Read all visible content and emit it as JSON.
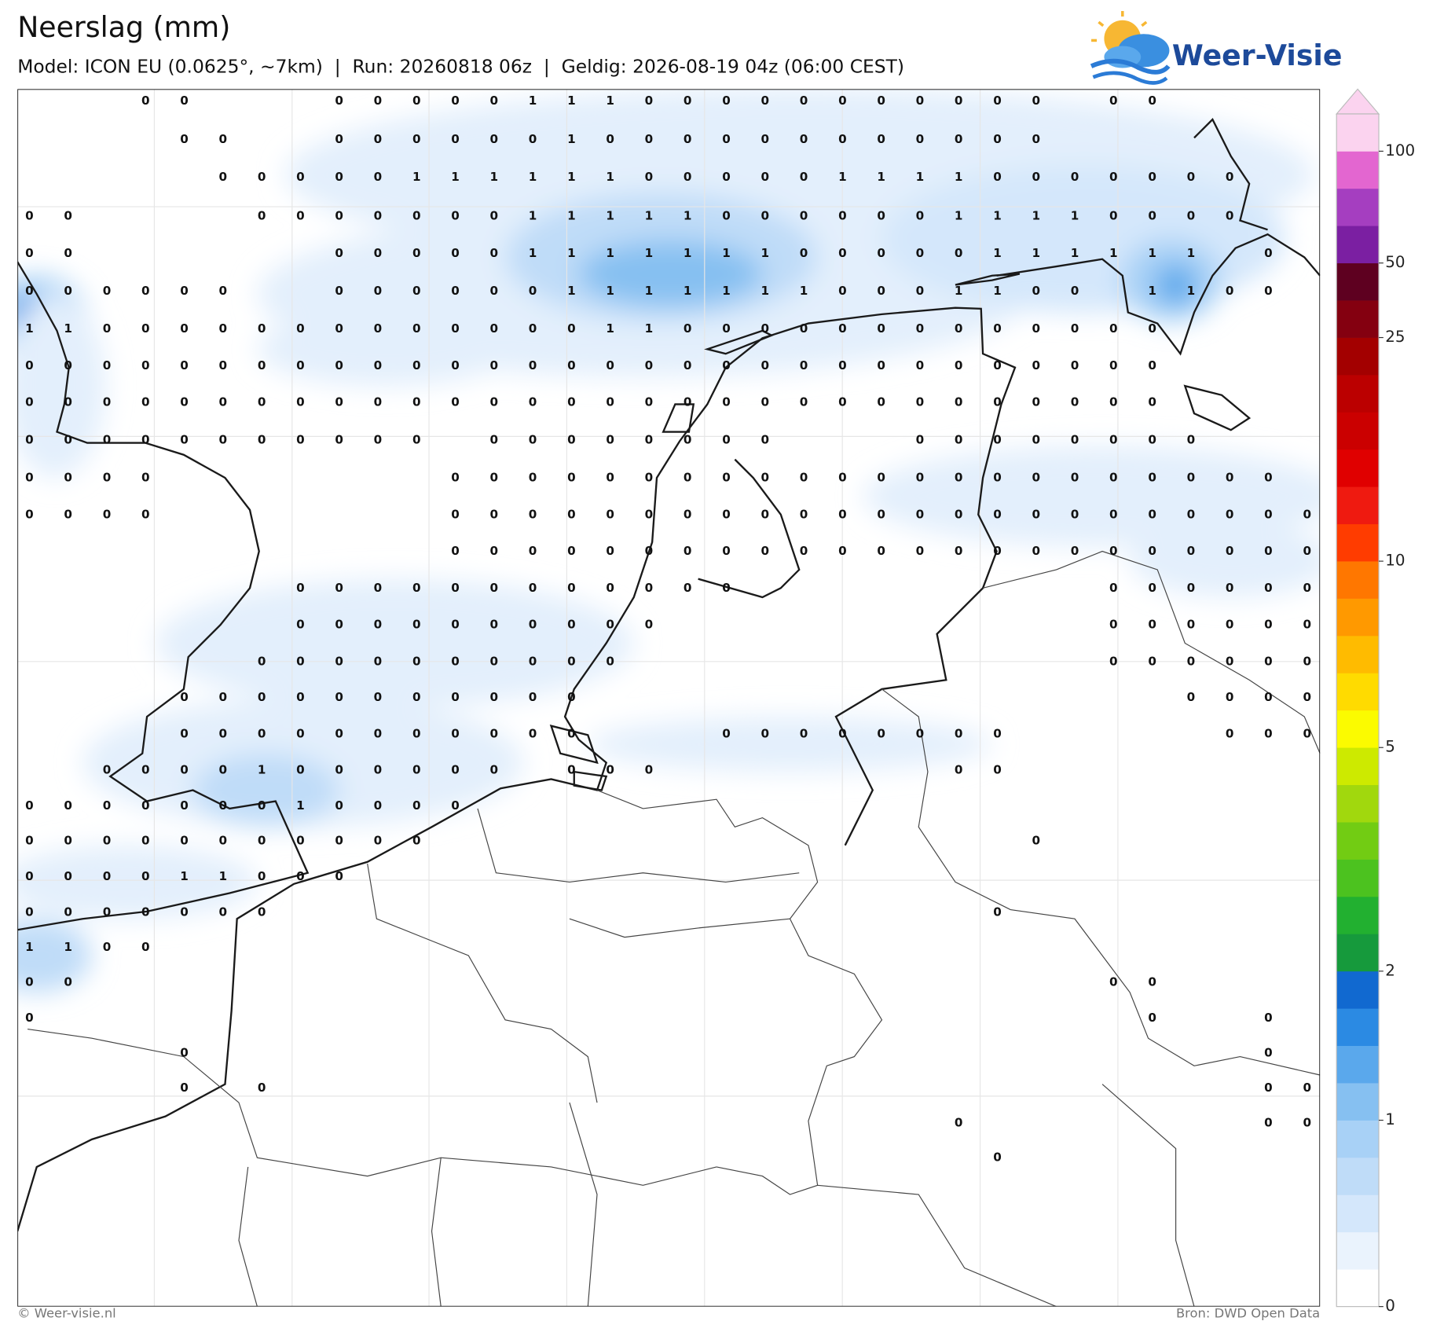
{
  "header": {
    "title": "Neerslag (mm)",
    "subtitle": "Model: ICON EU (0.0625°, ~7km)  |  Run: 20260818 06z  |  Geldig: 2026-08-19 04z (06:00 CEST)"
  },
  "logo": {
    "text": "Weer-Visie"
  },
  "map": {
    "grid": [
      [
        null,
        null,
        null,
        0,
        0,
        null,
        null,
        null,
        0,
        0,
        0,
        0,
        0,
        1,
        1,
        1,
        0,
        0,
        0,
        0,
        0,
        0,
        0,
        0,
        0,
        0,
        0,
        null,
        0,
        0,
        null,
        null,
        null,
        null
      ],
      [
        null,
        null,
        null,
        null,
        0,
        0,
        null,
        null,
        0,
        0,
        0,
        0,
        0,
        0,
        1,
        0,
        0,
        0,
        0,
        0,
        0,
        0,
        0,
        0,
        0,
        0,
        0,
        null,
        null,
        null,
        null,
        null,
        null,
        null
      ],
      [
        null,
        null,
        null,
        null,
        null,
        0,
        0,
        0,
        0,
        0,
        1,
        1,
        1,
        1,
        1,
        1,
        0,
        0,
        0,
        0,
        0,
        1,
        1,
        1,
        1,
        0,
        0,
        0,
        0,
        0,
        0,
        0,
        null,
        null
      ],
      [
        0,
        0,
        null,
        null,
        null,
        null,
        0,
        0,
        0,
        0,
        0,
        0,
        0,
        1,
        1,
        1,
        1,
        1,
        0,
        0,
        0,
        0,
        0,
        0,
        1,
        1,
        1,
        1,
        0,
        0,
        0,
        0,
        null,
        null
      ],
      [
        0,
        0,
        null,
        null,
        null,
        null,
        null,
        null,
        0,
        0,
        0,
        0,
        0,
        1,
        1,
        1,
        1,
        1,
        1,
        1,
        0,
        0,
        0,
        0,
        0,
        1,
        1,
        1,
        1,
        1,
        1,
        null,
        0,
        null
      ],
      [
        0,
        0,
        0,
        0,
        0,
        0,
        null,
        null,
        0,
        0,
        0,
        0,
        0,
        0,
        1,
        1,
        1,
        1,
        1,
        1,
        1,
        0,
        0,
        0,
        1,
        1,
        0,
        0,
        null,
        1,
        1,
        0,
        0,
        null
      ],
      [
        1,
        1,
        0,
        0,
        0,
        0,
        0,
        0,
        0,
        0,
        0,
        0,
        0,
        0,
        0,
        1,
        1,
        0,
        0,
        0,
        0,
        0,
        0,
        0,
        0,
        0,
        0,
        0,
        0,
        0,
        null,
        null,
        null,
        null
      ],
      [
        0,
        0,
        0,
        0,
        0,
        0,
        0,
        0,
        0,
        0,
        0,
        0,
        0,
        0,
        0,
        0,
        0,
        0,
        0,
        0,
        0,
        0,
        0,
        0,
        0,
        0,
        0,
        0,
        0,
        0,
        null,
        null,
        null,
        null
      ],
      [
        0,
        0,
        0,
        0,
        0,
        0,
        0,
        0,
        0,
        0,
        0,
        0,
        0,
        0,
        0,
        0,
        0,
        0,
        0,
        0,
        0,
        0,
        0,
        0,
        0,
        0,
        0,
        0,
        0,
        0,
        null,
        null,
        null,
        null
      ],
      [
        0,
        0,
        0,
        0,
        0,
        0,
        0,
        0,
        0,
        0,
        0,
        null,
        0,
        0,
        0,
        0,
        0,
        0,
        0,
        0,
        null,
        null,
        null,
        0,
        0,
        0,
        0,
        0,
        0,
        0,
        0,
        null,
        null,
        null
      ],
      [
        0,
        0,
        0,
        0,
        null,
        null,
        null,
        null,
        null,
        null,
        null,
        0,
        0,
        0,
        0,
        0,
        0,
        0,
        0,
        0,
        0,
        0,
        0,
        0,
        0,
        0,
        0,
        0,
        0,
        0,
        0,
        0,
        0,
        null
      ],
      [
        0,
        0,
        0,
        0,
        null,
        null,
        null,
        null,
        null,
        null,
        null,
        0,
        0,
        0,
        0,
        0,
        0,
        0,
        0,
        0,
        0,
        0,
        0,
        0,
        0,
        0,
        0,
        0,
        0,
        0,
        0,
        0,
        0,
        0
      ],
      [
        null,
        null,
        null,
        null,
        null,
        null,
        null,
        null,
        null,
        null,
        null,
        0,
        0,
        0,
        0,
        0,
        0,
        0,
        0,
        0,
        0,
        0,
        0,
        0,
        0,
        0,
        0,
        0,
        0,
        0,
        0,
        0,
        0,
        0
      ],
      [
        null,
        null,
        null,
        null,
        null,
        null,
        null,
        0,
        0,
        0,
        0,
        0,
        0,
        0,
        0,
        0,
        0,
        0,
        0,
        null,
        null,
        null,
        null,
        null,
        null,
        null,
        null,
        null,
        0,
        0,
        0,
        0,
        0,
        0
      ],
      [
        null,
        null,
        null,
        null,
        null,
        null,
        null,
        0,
        0,
        0,
        0,
        0,
        0,
        0,
        0,
        0,
        0,
        null,
        null,
        null,
        null,
        null,
        null,
        null,
        null,
        null,
        null,
        null,
        0,
        0,
        0,
        0,
        0,
        0
      ],
      [
        null,
        null,
        null,
        null,
        null,
        null,
        0,
        0,
        0,
        0,
        0,
        0,
        0,
        0,
        0,
        0,
        null,
        null,
        null,
        null,
        null,
        null,
        null,
        null,
        null,
        null,
        null,
        null,
        0,
        0,
        0,
        0,
        0,
        0
      ],
      [
        null,
        null,
        null,
        null,
        0,
        0,
        0,
        0,
        0,
        0,
        0,
        0,
        0,
        0,
        0,
        null,
        null,
        null,
        null,
        null,
        null,
        null,
        null,
        null,
        null,
        null,
        null,
        null,
        null,
        null,
        0,
        0,
        0,
        0
      ],
      [
        null,
        null,
        null,
        null,
        0,
        0,
        0,
        0,
        0,
        0,
        0,
        0,
        0,
        0,
        0,
        null,
        null,
        null,
        0,
        0,
        0,
        0,
        0,
        0,
        0,
        0,
        null,
        null,
        null,
        null,
        null,
        0,
        0,
        0
      ],
      [
        null,
        null,
        0,
        0,
        0,
        0,
        1,
        0,
        0,
        0,
        0,
        0,
        0,
        null,
        0,
        0,
        0,
        null,
        null,
        null,
        null,
        null,
        null,
        null,
        0,
        0,
        null,
        null,
        null,
        null,
        null,
        null,
        null,
        null
      ],
      [
        0,
        0,
        0,
        0,
        0,
        0,
        0,
        1,
        0,
        0,
        0,
        0,
        null,
        null,
        null,
        null,
        null,
        null,
        null,
        null,
        null,
        null,
        null,
        null,
        null,
        null,
        null,
        null,
        null,
        null,
        null,
        null,
        null,
        null
      ],
      [
        0,
        0,
        0,
        0,
        0,
        0,
        0,
        0,
        0,
        0,
        0,
        null,
        null,
        null,
        null,
        null,
        null,
        null,
        null,
        null,
        null,
        null,
        null,
        null,
        null,
        null,
        0,
        null,
        null,
        null,
        null,
        null,
        null,
        null
      ],
      [
        0,
        0,
        0,
        0,
        1,
        1,
        0,
        0,
        0,
        null,
        null,
        null,
        null,
        null,
        null,
        null,
        null,
        null,
        null,
        null,
        null,
        null,
        null,
        null,
        null,
        null,
        null,
        null,
        null,
        null,
        null,
        null,
        null,
        null
      ],
      [
        0,
        0,
        0,
        0,
        0,
        0,
        0,
        null,
        null,
        null,
        null,
        null,
        null,
        null,
        null,
        null,
        null,
        null,
        null,
        null,
        null,
        null,
        null,
        null,
        null,
        0,
        null,
        null,
        null,
        null,
        null,
        null,
        null,
        null
      ],
      [
        1,
        1,
        0,
        0,
        null,
        null,
        null,
        null,
        null,
        null,
        null,
        null,
        null,
        null,
        null,
        null,
        null,
        null,
        null,
        null,
        null,
        null,
        null,
        null,
        null,
        null,
        null,
        null,
        null,
        null,
        null,
        null,
        null,
        null
      ],
      [
        0,
        0,
        null,
        null,
        null,
        null,
        null,
        null,
        null,
        null,
        null,
        null,
        null,
        null,
        null,
        null,
        null,
        null,
        null,
        null,
        null,
        null,
        null,
        null,
        null,
        null,
        null,
        null,
        0,
        0,
        null,
        null,
        null,
        null
      ],
      [
        0,
        null,
        null,
        null,
        null,
        null,
        null,
        null,
        null,
        null,
        null,
        null,
        null,
        null,
        null,
        null,
        null,
        null,
        null,
        null,
        null,
        null,
        null,
        null,
        null,
        null,
        null,
        null,
        null,
        0,
        null,
        null,
        0,
        null
      ],
      [
        null,
        null,
        null,
        null,
        0,
        null,
        null,
        null,
        null,
        null,
        null,
        null,
        null,
        null,
        null,
        null,
        null,
        null,
        null,
        null,
        null,
        null,
        null,
        null,
        null,
        null,
        null,
        null,
        null,
        null,
        null,
        null,
        0,
        null
      ],
      [
        null,
        null,
        null,
        null,
        0,
        null,
        0,
        null,
        null,
        null,
        null,
        null,
        null,
        null,
        null,
        null,
        null,
        null,
        null,
        null,
        null,
        null,
        null,
        null,
        null,
        null,
        null,
        null,
        null,
        null,
        null,
        null,
        0,
        0
      ],
      [
        null,
        null,
        null,
        null,
        null,
        null,
        null,
        null,
        null,
        null,
        null,
        null,
        null,
        null,
        null,
        null,
        null,
        null,
        null,
        null,
        null,
        null,
        null,
        null,
        0,
        null,
        null,
        null,
        null,
        null,
        null,
        null,
        0,
        0
      ],
      [
        null,
        null,
        null,
        null,
        null,
        null,
        null,
        null,
        null,
        null,
        null,
        null,
        null,
        null,
        null,
        null,
        null,
        null,
        null,
        null,
        null,
        null,
        null,
        null,
        null,
        0,
        null,
        null,
        null,
        null,
        null,
        null,
        null,
        null
      ]
    ]
  },
  "colorbar": {
    "levels": [
      0,
      0.1,
      0.2,
      0.3,
      0.5,
      1,
      1.2,
      1.5,
      1.7,
      2,
      2.5,
      3,
      3.5,
      4,
      4.5,
      5,
      6,
      7,
      8,
      9,
      10,
      12,
      14,
      16,
      18,
      20,
      25,
      30,
      50,
      60,
      70,
      100,
      150
    ],
    "colors": [
      "#ffffff",
      "#eaf3fd",
      "#d4e7fb",
      "#bfdcf8",
      "#a8d1f6",
      "#86c0f1",
      "#5aa8ec",
      "#2b8ae3",
      "#1169d0",
      "#169a3c",
      "#22b030",
      "#4cc21f",
      "#72cc13",
      "#a1d80d",
      "#cdea00",
      "#fbfb00",
      "#ffdb00",
      "#ffbb00",
      "#ff9900",
      "#ff7700",
      "#ff3c00",
      "#ef1a10",
      "#e00000",
      "#cb0000",
      "#bb0000",
      "#a30000",
      "#840010",
      "#5e0020",
      "#7b1fa2",
      "#a53ec0",
      "#e366d0",
      "#fbd3ef"
    ],
    "ticks": [
      0,
      1,
      2,
      5,
      10,
      25,
      50,
      100
    ]
  },
  "footer": {
    "left": "© Weer-visie.nl",
    "right": "Bron: DWD Open Data"
  }
}
